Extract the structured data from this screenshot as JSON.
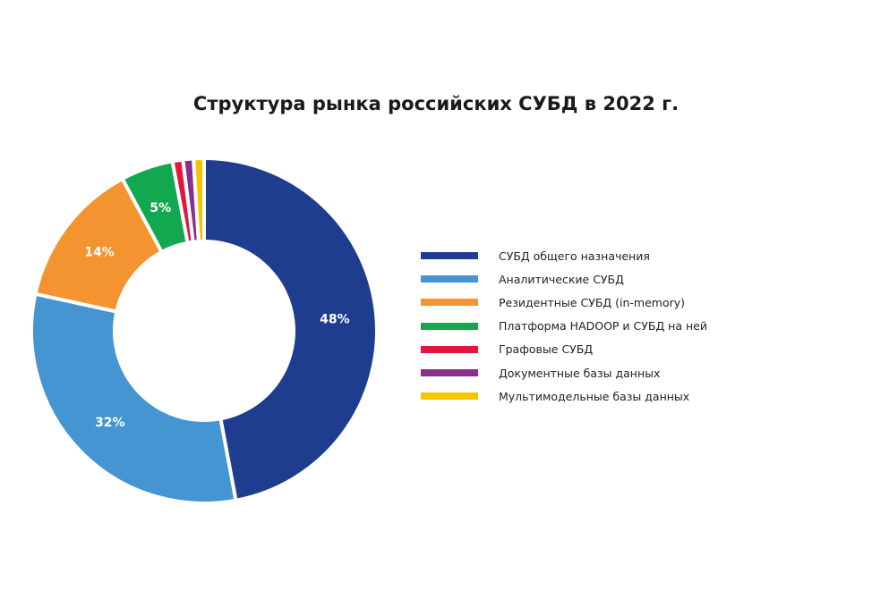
{
  "chart_data": {
    "type": "pie",
    "variant": "donut",
    "title": "Структура рынка российских СУБД в 2022 г.",
    "categories": [
      "СУБД общего назначения",
      "Аналитические СУБД",
      "Резидентные СУБД (in-memory)",
      "Платформа HADOOP и СУБД на ней",
      "Графовые СУБД",
      "Документные базы данных",
      "Мультимодельные базы данных"
    ],
    "values": [
      48,
      32,
      14,
      5,
      1,
      1,
      1
    ],
    "data_labels": [
      "48%",
      "32%",
      "14%",
      "5%",
      "",
      "",
      ""
    ],
    "colors": [
      "#1f3d8f",
      "#4595d3",
      "#f39431",
      "#12a84f",
      "#e3163f",
      "#8a2f8c",
      "#f6c500"
    ],
    "legend_position": "right"
  }
}
